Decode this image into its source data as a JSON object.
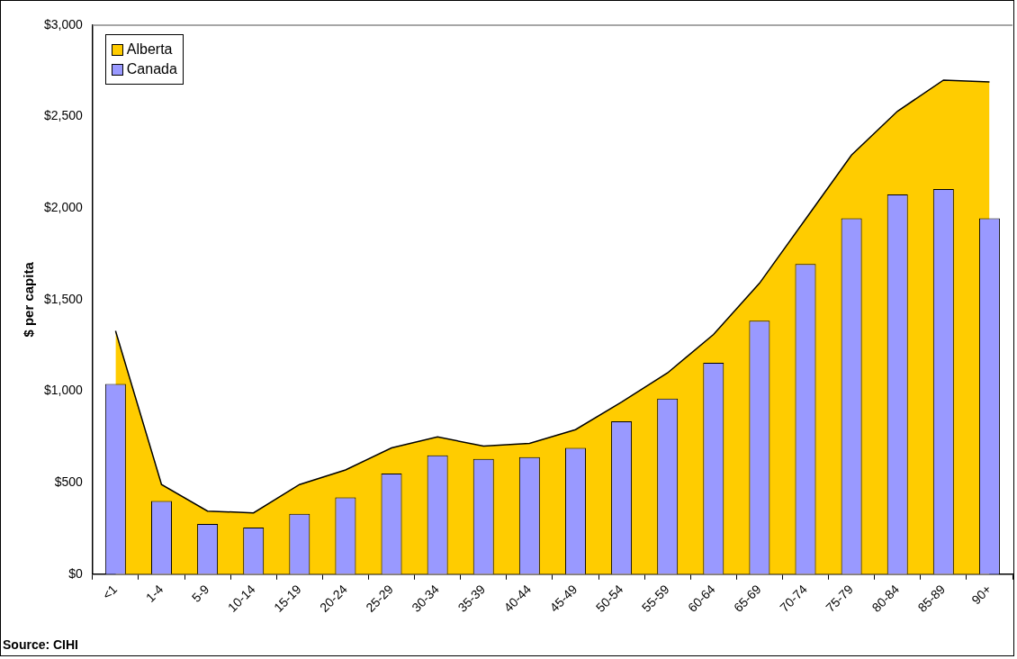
{
  "chart_data": {
    "type": "bar",
    "ylabel": "$ per capita",
    "categories": [
      "<1",
      "1-4",
      "5-9",
      "10-14",
      "15-19",
      "20-24",
      "25-29",
      "30-34",
      "35-39",
      "40-44",
      "45-49",
      "50-54",
      "55-59",
      "60-64",
      "65-69",
      "70-74",
      "75-79",
      "80-84",
      "85-89",
      "90+"
    ],
    "series": [
      {
        "name": "Alberta",
        "type": "area",
        "color": "#ffcc00",
        "values": [
          1330,
          490,
          345,
          335,
          490,
          570,
          690,
          750,
          700,
          715,
          790,
          940,
          1100,
          1310,
          1590,
          1940,
          2290,
          2530,
          2700,
          2690
        ]
      },
      {
        "name": "Canada",
        "color": "#9999ff",
        "values": [
          1040,
          400,
          275,
          255,
          330,
          420,
          550,
          650,
          630,
          640,
          690,
          835,
          960,
          1155,
          1385,
          1695,
          1945,
          2075,
          2105,
          1945
        ]
      }
    ],
    "ylim": [
      0,
      3000
    ],
    "yticks": [
      {
        "value": 0,
        "label": "$0"
      },
      {
        "value": 500,
        "label": "$500"
      },
      {
        "value": 1000,
        "label": "$1,000"
      },
      {
        "value": 1500,
        "label": "$1,500"
      },
      {
        "value": 2000,
        "label": "$2,000"
      },
      {
        "value": 2500,
        "label": "$2,500"
      },
      {
        "value": 3000,
        "label": "$3,000"
      }
    ],
    "legend": "top left",
    "annotations": [
      "Source: CIHI"
    ]
  }
}
